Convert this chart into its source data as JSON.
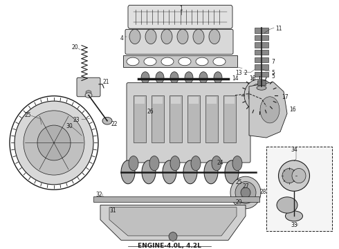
{
  "title": "ENGINE-4.0L, 4.2L",
  "bg": "#ffffff",
  "fg": "#1a1a1a",
  "fig_w": 4.9,
  "fig_h": 3.6,
  "dpi": 100,
  "title_fs": 6.5,
  "label_fs": 5.5
}
